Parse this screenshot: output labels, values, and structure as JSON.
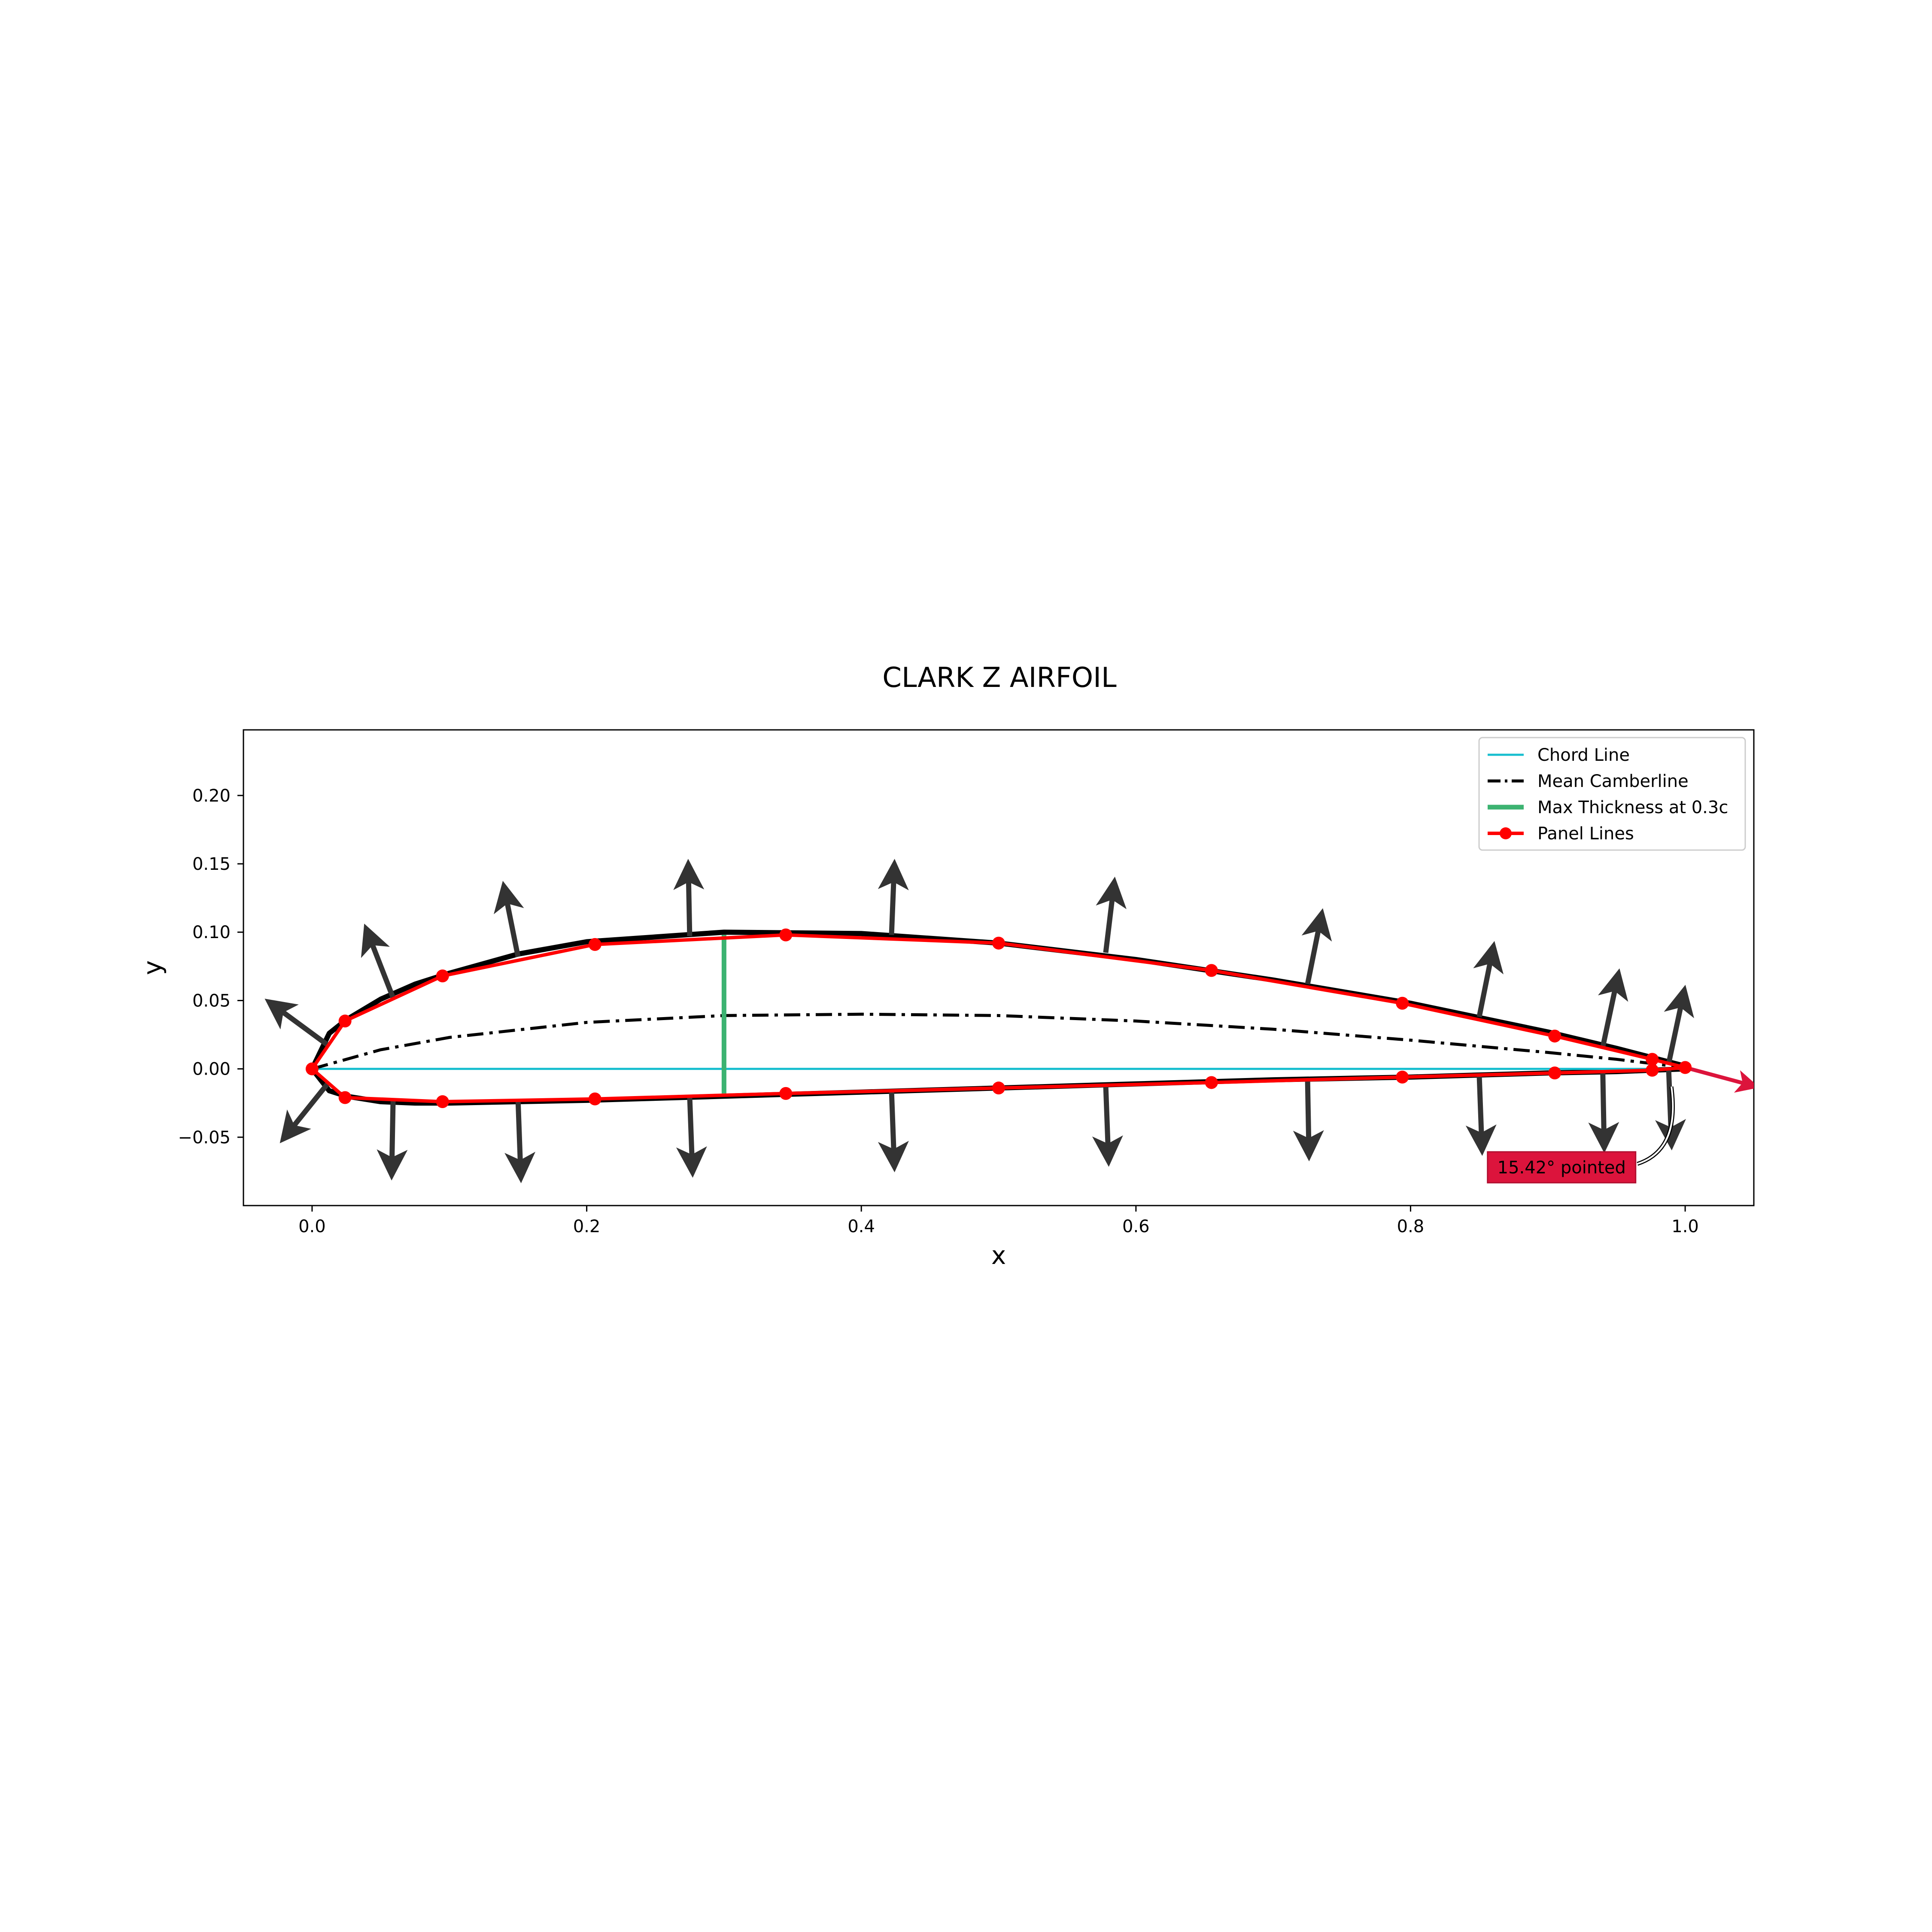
{
  "chart_data": {
    "type": "line",
    "title": "CLARK Z AIRFOIL",
    "xlabel": "x",
    "ylabel": "y",
    "xlim": [
      -0.05,
      1.05
    ],
    "ylim": [
      -0.1,
      0.248
    ],
    "xticks": [
      0.0,
      0.2,
      0.4,
      0.6,
      0.8,
      1.0
    ],
    "xtick_labels": [
      "0.0",
      "0.2",
      "0.4",
      "0.6",
      "0.8",
      "1.0"
    ],
    "yticks": [
      -0.05,
      0.0,
      0.05,
      0.1,
      0.15,
      0.2
    ],
    "ytick_labels": [
      "−0.05",
      "0.00",
      "0.05",
      "0.10",
      "0.15",
      "0.20"
    ],
    "grid": false,
    "legend_position": "top-right",
    "series": [
      {
        "name": "Chord Line",
        "color": "#17becf",
        "style": "solid",
        "x": [
          0.0,
          1.0
        ],
        "y": [
          0.0,
          0.0
        ]
      },
      {
        "name": "Mean Camberline",
        "color": "#000000",
        "style": "dashdot",
        "x": [
          0.0,
          0.05,
          0.1,
          0.2,
          0.3,
          0.4,
          0.5,
          0.6,
          0.7,
          0.8,
          0.9,
          0.95,
          1.0
        ],
        "y": [
          0.0,
          0.014,
          0.023,
          0.034,
          0.039,
          0.04,
          0.039,
          0.035,
          0.029,
          0.021,
          0.012,
          0.007,
          0.001
        ]
      },
      {
        "name": "Max Thickness at 0.3c",
        "color": "#3cb371",
        "style": "solid",
        "x": [
          0.3,
          0.3
        ],
        "y": [
          -0.018,
          0.098
        ]
      },
      {
        "name": "Panel Lines",
        "color": "#ff0000",
        "style": "solid-markers",
        "x": [
          1.0,
          0.976,
          0.905,
          0.794,
          0.655,
          0.5,
          0.345,
          0.206,
          0.095,
          0.024,
          0.0,
          0.024,
          0.095,
          0.206,
          0.345,
          0.5,
          0.655,
          0.794,
          0.905,
          0.976,
          1.0
        ],
        "y": [
          0.001,
          0.007,
          0.024,
          0.048,
          0.072,
          0.092,
          0.098,
          0.091,
          0.068,
          0.035,
          0.0,
          -0.021,
          -0.024,
          -0.022,
          -0.018,
          -0.014,
          -0.01,
          -0.006,
          -0.003,
          -0.001,
          0.001
        ]
      }
    ],
    "airfoil_surface": {
      "x": [
        1.0,
        0.95,
        0.9,
        0.8,
        0.7,
        0.6,
        0.5,
        0.4,
        0.3,
        0.2,
        0.15,
        0.1,
        0.075,
        0.05,
        0.025,
        0.0125,
        0.0,
        0.0125,
        0.025,
        0.05,
        0.075,
        0.1,
        0.15,
        0.2,
        0.3,
        0.4,
        0.5,
        0.6,
        0.7,
        0.8,
        0.9,
        0.95,
        1.0
      ],
      "y": [
        0.002,
        0.015,
        0.027,
        0.048,
        0.065,
        0.08,
        0.092,
        0.099,
        0.1,
        0.093,
        0.084,
        0.07,
        0.062,
        0.051,
        0.036,
        0.026,
        0.0,
        -0.016,
        -0.02,
        -0.024,
        -0.025,
        -0.025,
        -0.024,
        -0.023,
        -0.02,
        -0.017,
        -0.014,
        -0.011,
        -0.008,
        -0.006,
        -0.003,
        -0.002,
        0.0
      ]
    },
    "normal_vectors": [
      {
        "x0": 0.012,
        "y0": 0.017,
        "x1": -0.03,
        "y1": 0.048
      },
      {
        "x0": 0.012,
        "y0": -0.01,
        "x1": -0.02,
        "y1": -0.05
      },
      {
        "x0": 0.059,
        "y0": 0.052,
        "x1": 0.04,
        "y1": 0.101
      },
      {
        "x0": 0.059,
        "y0": -0.022,
        "x1": 0.058,
        "y1": -0.076
      },
      {
        "x0": 0.15,
        "y0": 0.082,
        "x1": 0.14,
        "y1": 0.132
      },
      {
        "x0": 0.15,
        "y0": -0.023,
        "x1": 0.152,
        "y1": -0.078
      },
      {
        "x0": 0.275,
        "y0": 0.097,
        "x1": 0.274,
        "y1": 0.148
      },
      {
        "x0": 0.275,
        "y0": -0.02,
        "x1": 0.277,
        "y1": -0.074
      },
      {
        "x0": 0.422,
        "y0": 0.098,
        "x1": 0.424,
        "y1": 0.148
      },
      {
        "x0": 0.422,
        "y0": -0.016,
        "x1": 0.424,
        "y1": -0.07
      },
      {
        "x0": 0.578,
        "y0": 0.085,
        "x1": 0.584,
        "y1": 0.135
      },
      {
        "x0": 0.578,
        "y0": -0.012,
        "x1": 0.58,
        "y1": -0.066
      },
      {
        "x0": 0.725,
        "y0": 0.062,
        "x1": 0.735,
        "y1": 0.112
      },
      {
        "x0": 0.725,
        "y0": -0.008,
        "x1": 0.726,
        "y1": -0.062
      },
      {
        "x0": 0.85,
        "y0": 0.038,
        "x1": 0.86,
        "y1": 0.088
      },
      {
        "x0": 0.85,
        "y0": -0.004,
        "x1": 0.852,
        "y1": -0.058
      },
      {
        "x0": 0.94,
        "y0": 0.016,
        "x1": 0.951,
        "y1": 0.068
      },
      {
        "x0": 0.94,
        "y0": -0.002,
        "x1": 0.941,
        "y1": -0.056
      },
      {
        "x0": 0.988,
        "y0": 0.004,
        "x1": 0.999,
        "y1": 0.056
      },
      {
        "x0": 0.988,
        "y0": -0.001,
        "x1": 0.99,
        "y1": -0.054
      }
    ],
    "trailing_edge_vector": {
      "x0": 1.0,
      "y0": 0.001,
      "x1": 1.05,
      "y1": -0.0125,
      "color": "#dc143c"
    },
    "annotation": {
      "text": "15.42° pointed",
      "x": 0.91,
      "y": -0.072,
      "arrow_to_x": 0.99,
      "arrow_to_y": -0.013,
      "box_color": "#dc143c"
    }
  }
}
